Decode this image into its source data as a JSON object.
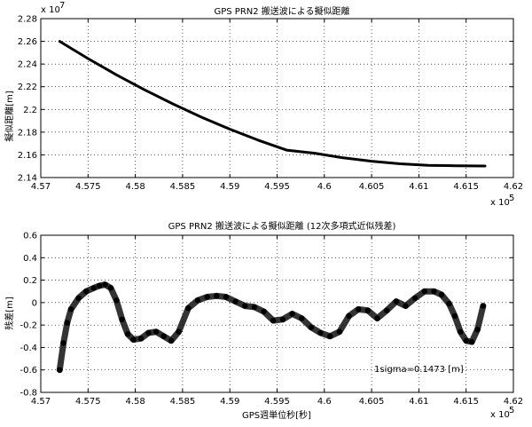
{
  "chart_data": [
    {
      "type": "line",
      "title": "GPS PRN2 搬送波による擬似距離",
      "xlabel": "",
      "ylabel": "擬似距離[m]",
      "y_exponent": "x 10",
      "y_exponent_power": "7",
      "x_exponent": "x 10",
      "x_exponent_power": "5",
      "xlim": [
        4.57,
        4.62
      ],
      "ylim": [
        2.14,
        2.28
      ],
      "x_ticks": [
        "4.57",
        "4.575",
        "4.58",
        "4.585",
        "4.59",
        "4.595",
        "4.6",
        "4.605",
        "4.61",
        "4.615",
        "4.62"
      ],
      "y_ticks": [
        "2.14",
        "2.16",
        "2.18",
        "2.2",
        "2.22",
        "2.24",
        "2.26",
        "2.28"
      ],
      "x_tick_values": [
        4.57,
        4.575,
        4.58,
        4.585,
        4.59,
        4.595,
        4.6,
        4.605,
        4.61,
        4.615,
        4.62
      ],
      "y_tick_values": [
        2.14,
        2.16,
        2.18,
        2.2,
        2.22,
        2.24,
        2.26,
        2.28
      ],
      "grid": true,
      "series": [
        {
          "x": [
            4.572,
            4.575,
            4.578,
            4.581,
            4.584,
            4.587,
            4.59,
            4.593,
            4.596,
            4.599,
            4.602,
            4.605,
            4.608,
            4.611,
            4.614,
            4.617
          ],
          "y": [
            2.26,
            2.2448,
            2.2305,
            2.2172,
            2.2048,
            2.1932,
            2.1826,
            2.1729,
            2.1642,
            2.1614,
            2.1574,
            2.1544,
            2.1521,
            2.1508,
            2.1504,
            2.1502
          ]
        }
      ]
    },
    {
      "type": "scatter",
      "title": "GPS PRN2 搬送波による擬似距離 (12次多項式近似残差)",
      "xlabel": "GPS週単位秒[秒]",
      "ylabel": "残差[m]",
      "x_exponent": "x 10",
      "x_exponent_power": "5",
      "xlim": [
        4.57,
        4.62
      ],
      "ylim": [
        -0.8,
        0.6
      ],
      "x_ticks": [
        "4.57",
        "4.575",
        "4.58",
        "4.585",
        "4.59",
        "4.595",
        "4.6",
        "4.605",
        "4.61",
        "4.615",
        "4.62"
      ],
      "y_ticks": [
        "-0.8",
        "-0.6",
        "-0.4",
        "-0.2",
        "0",
        "0.2",
        "0.4",
        "0.6"
      ],
      "x_tick_values": [
        4.57,
        4.575,
        4.58,
        4.585,
        4.59,
        4.595,
        4.6,
        4.605,
        4.61,
        4.615,
        4.62
      ],
      "y_tick_values": [
        -0.8,
        -0.6,
        -0.4,
        -0.2,
        0,
        0.2,
        0.4,
        0.6
      ],
      "grid": true,
      "annotation": "1sigma=0.1473 [m]",
      "series": [
        {
          "x": [
            4.572,
            4.5724,
            4.5728,
            4.5732,
            4.574,
            4.5748,
            4.5756,
            4.5762,
            4.5768,
            4.5774,
            4.578,
            4.5786,
            4.5792,
            4.5798,
            4.5806,
            4.5814,
            4.5822,
            4.583,
            4.5838,
            4.5846,
            4.5856,
            4.5866,
            4.5876,
            4.5886,
            4.5896,
            4.5906,
            4.5916,
            4.5926,
            4.5936,
            4.5946,
            4.5956,
            4.5966,
            4.5976,
            4.5986,
            4.5996,
            4.6006,
            4.6016,
            4.6026,
            4.6036,
            4.6046,
            4.6056,
            4.6066,
            4.6076,
            4.6086,
            4.6096,
            4.6106,
            4.6116,
            4.6124,
            4.6132,
            4.6138,
            4.6144,
            4.615,
            4.6156,
            4.6162,
            4.6168
          ],
          "y": [
            -0.6,
            -0.36,
            -0.18,
            -0.06,
            0.04,
            0.1,
            0.13,
            0.15,
            0.16,
            0.13,
            0.02,
            -0.15,
            -0.28,
            -0.33,
            -0.32,
            -0.27,
            -0.26,
            -0.3,
            -0.34,
            -0.26,
            -0.05,
            0.02,
            0.05,
            0.06,
            0.05,
            0.01,
            -0.03,
            -0.04,
            -0.08,
            -0.16,
            -0.15,
            -0.1,
            -0.14,
            -0.22,
            -0.27,
            -0.3,
            -0.26,
            -0.12,
            -0.06,
            -0.07,
            -0.14,
            -0.07,
            0.01,
            -0.03,
            0.04,
            0.1,
            0.1,
            0.07,
            -0.01,
            -0.12,
            -0.26,
            -0.34,
            -0.35,
            -0.24,
            -0.03
          ]
        }
      ]
    }
  ]
}
